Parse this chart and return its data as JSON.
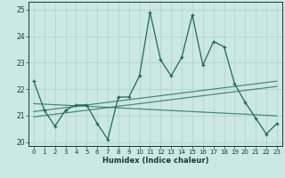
{
  "title": "",
  "xlabel": "Humidex (Indice chaleur)",
  "ylabel": "",
  "xlim": [
    -0.5,
    23.5
  ],
  "ylim": [
    19.85,
    25.3
  ],
  "yticks": [
    20,
    21,
    22,
    23,
    24,
    25
  ],
  "xticks": [
    0,
    1,
    2,
    3,
    4,
    5,
    6,
    7,
    8,
    9,
    10,
    11,
    12,
    13,
    14,
    15,
    16,
    17,
    18,
    19,
    20,
    21,
    22,
    23
  ],
  "bg_color": "#cce8e4",
  "grid_color": "#b0cfcb",
  "line_color": "#1a6b5a",
  "main_line": [
    22.3,
    21.2,
    20.6,
    21.2,
    21.4,
    21.4,
    20.7,
    20.1,
    21.7,
    21.7,
    22.5,
    24.9,
    23.1,
    22.5,
    23.2,
    24.8,
    22.9,
    23.8,
    23.6,
    22.2,
    21.5,
    20.9,
    20.3,
    20.7
  ],
  "trend_line1": [
    21.15,
    21.2,
    21.25,
    21.3,
    21.35,
    21.4,
    21.45,
    21.5,
    21.55,
    21.6,
    21.65,
    21.7,
    21.75,
    21.8,
    21.85,
    21.9,
    21.95,
    22.0,
    22.05,
    22.1,
    22.15,
    22.2,
    22.25,
    22.3
  ],
  "trend_line2": [
    21.45,
    21.43,
    21.41,
    21.39,
    21.37,
    21.35,
    21.33,
    21.31,
    21.29,
    21.27,
    21.25,
    21.23,
    21.21,
    21.19,
    21.17,
    21.15,
    21.13,
    21.11,
    21.09,
    21.07,
    21.05,
    21.03,
    21.01,
    20.99
  ],
  "trend_line3": [
    20.95,
    21.0,
    21.05,
    21.1,
    21.15,
    21.2,
    21.25,
    21.3,
    21.35,
    21.4,
    21.45,
    21.5,
    21.55,
    21.6,
    21.65,
    21.7,
    21.75,
    21.8,
    21.85,
    21.9,
    21.95,
    22.0,
    22.05,
    22.1
  ]
}
